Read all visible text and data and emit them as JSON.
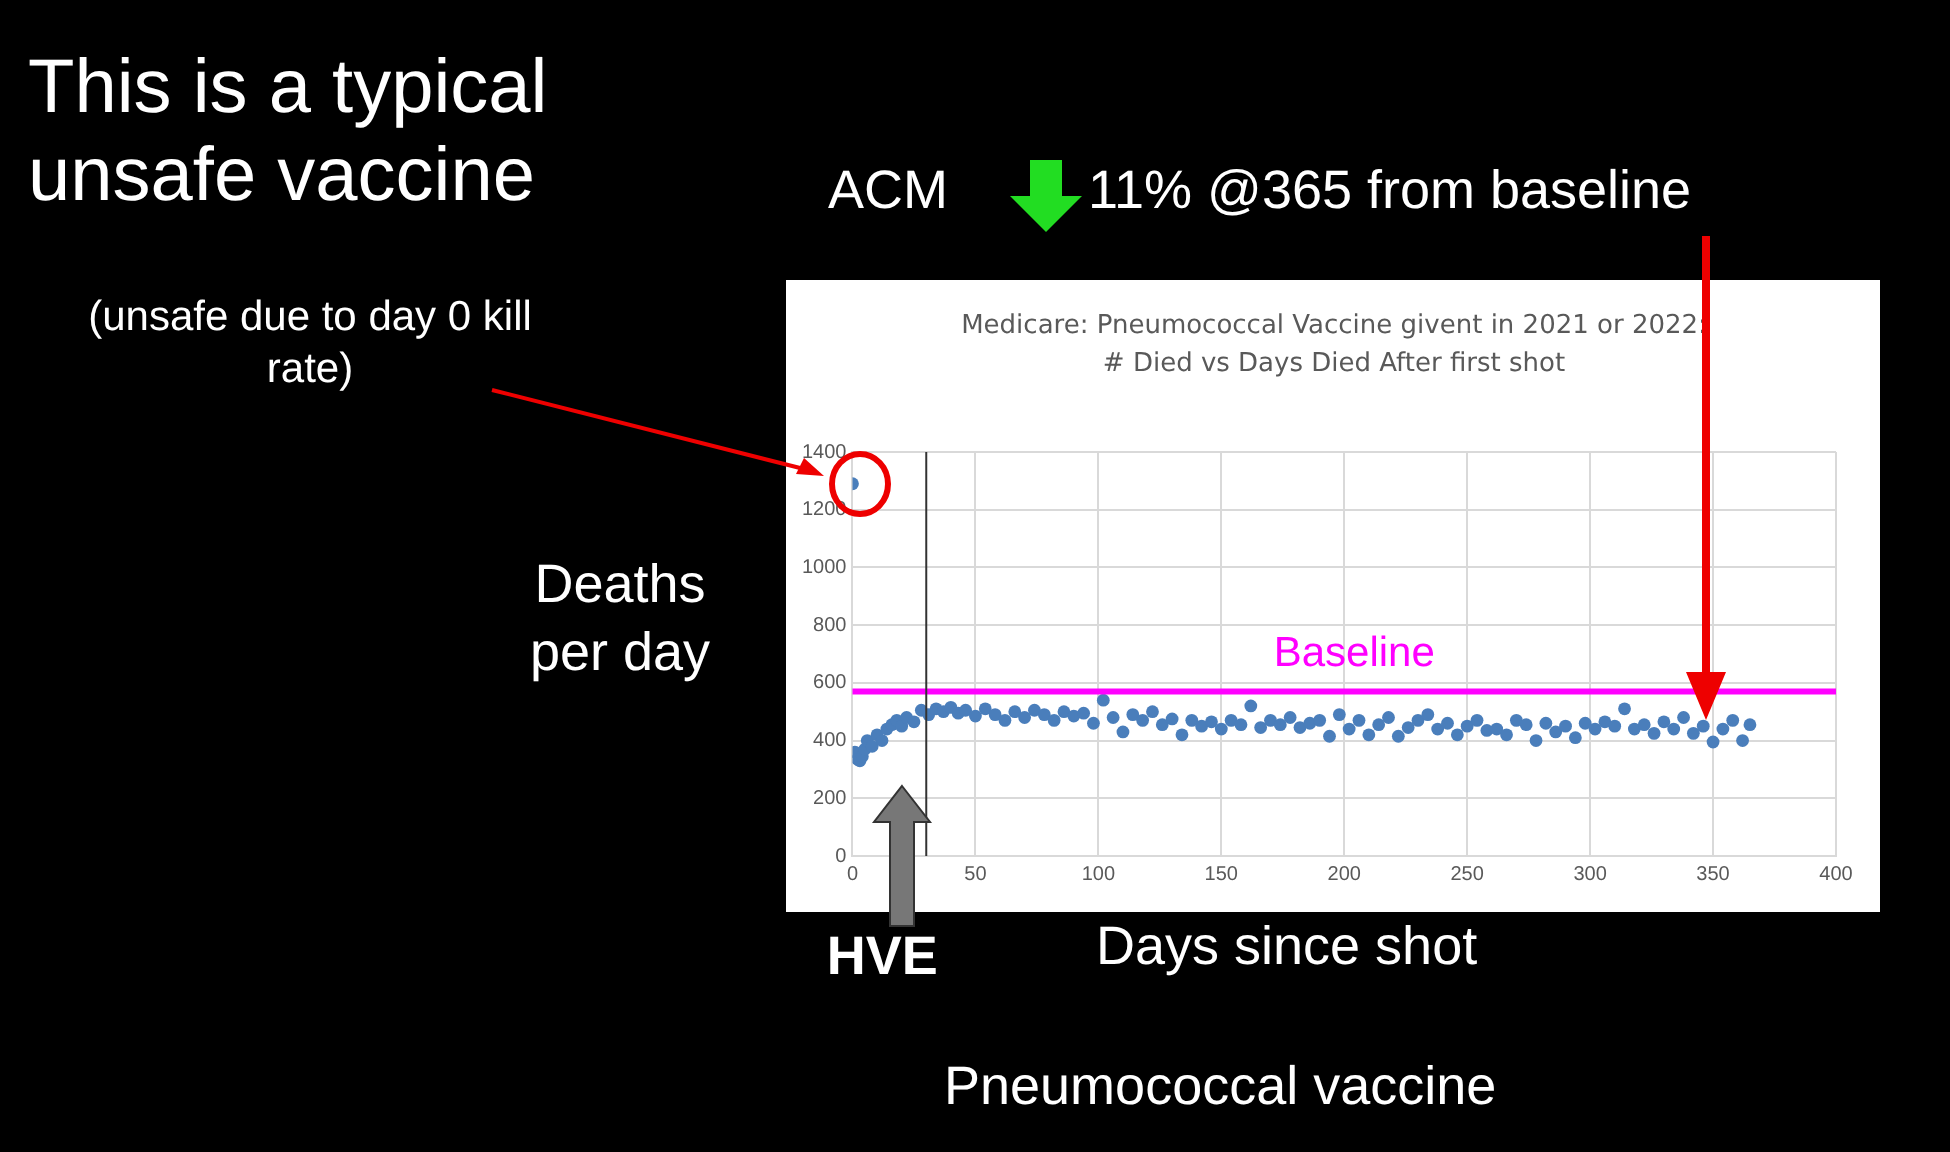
{
  "chart_data": {
    "type": "scatter",
    "title": "Medicare: Pneumococcal Vaccine givent in 2021 or 2022: # Died vs Days Died After first shot",
    "xlabel": "Days since shot",
    "ylabel": "Deaths per day",
    "annotations": [
      "This is a typical unsafe vaccine",
      "(unsafe due to day 0 kill rate)",
      "ACM",
      "11% @365 from baseline",
      "Pneumococcal vaccine"
    ],
    "series": [
      {
        "color": "#4a7ebb",
        "x": [
          0,
          1,
          2,
          3,
          4,
          5,
          6,
          8,
          10,
          12,
          14,
          16,
          18,
          20,
          22,
          25,
          28,
          31,
          34,
          37,
          40,
          43,
          46,
          50,
          54,
          58,
          62,
          66,
          70,
          74,
          78,
          82,
          86,
          90,
          94,
          98,
          102,
          106,
          110,
          114,
          118,
          122,
          126,
          130,
          134,
          138,
          142,
          146,
          150,
          154,
          158,
          162,
          166,
          170,
          174,
          178,
          182,
          186,
          190,
          194,
          198,
          202,
          206,
          210,
          214,
          218,
          222,
          226,
          230,
          234,
          238,
          242,
          246,
          250,
          254,
          258,
          262,
          266,
          270,
          274,
          278,
          282,
          286,
          290,
          294,
          298,
          302,
          306,
          310,
          314,
          318,
          322,
          326,
          330,
          334,
          338,
          342,
          346,
          350,
          354,
          358,
          362,
          365
        ],
        "values": [
          1290,
          360,
          335,
          330,
          345,
          370,
          400,
          380,
          420,
          400,
          440,
          455,
          470,
          450,
          480,
          465,
          505,
          490,
          510,
          500,
          515,
          495,
          505,
          485,
          510,
          490,
          470,
          500,
          480,
          505,
          490,
          470,
          500,
          485,
          495,
          460,
          540,
          480,
          430,
          490,
          470,
          500,
          455,
          475,
          420,
          470,
          450,
          465,
          440,
          470,
          455,
          520,
          445,
          470,
          455,
          480,
          445,
          460,
          470,
          415,
          490,
          440,
          470,
          420,
          455,
          480,
          415,
          445,
          470,
          490,
          440,
          460,
          420,
          450,
          470,
          435,
          440,
          420,
          470,
          455,
          400,
          460,
          430,
          450,
          410,
          460,
          440,
          465,
          450,
          510,
          440,
          455,
          425,
          465,
          440,
          480,
          425,
          450,
          395,
          440,
          470,
          400,
          455
        ]
      }
    ],
    "xlim": [
      0,
      400
    ],
    "xticks": [
      0,
      50,
      100,
      150,
      200,
      250,
      300,
      350,
      400
    ],
    "ylim": [
      0,
      1400
    ],
    "yticks": [
      0,
      200,
      400,
      600,
      800,
      1000,
      1200,
      1400
    ],
    "grid": true,
    "legend": false,
    "marker": "circle",
    "ref_lines": [
      {
        "axis": "y",
        "value": 570,
        "label": "Baseline",
        "color": "#ff00ff"
      },
      {
        "axis": "x",
        "value": 30,
        "label": "HVE",
        "color": "#333333"
      }
    ]
  }
}
